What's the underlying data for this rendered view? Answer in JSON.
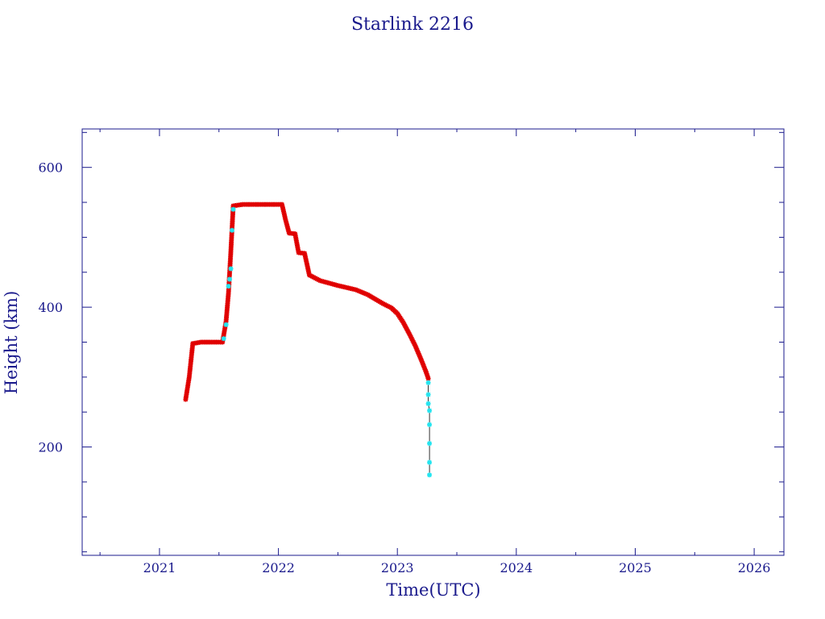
{
  "chart_data": {
    "type": "scatter",
    "title": "Starlink 2216",
    "xlabel": "Time(UTC)",
    "ylabel": "Height (km)",
    "xlim": [
      2020.35,
      2026.25
    ],
    "ylim": [
      45,
      655
    ],
    "x_ticks": [
      {
        "value": 2021,
        "label": "2021"
      },
      {
        "value": 2022,
        "label": "2022"
      },
      {
        "value": 2023,
        "label": "2023"
      },
      {
        "value": 2024,
        "label": "2024"
      },
      {
        "value": 2025,
        "label": "2025"
      },
      {
        "value": 2026,
        "label": "2026"
      }
    ],
    "y_ticks": [
      {
        "value": 200,
        "label": "200"
      },
      {
        "value": 400,
        "label": "400"
      },
      {
        "value": 600,
        "label": "600"
      }
    ],
    "grid": false,
    "colors": {
      "axis": "#1a1a8c",
      "primary_marker": "#e00000",
      "secondary_marker": "#22e5f0",
      "line": "#000000"
    },
    "series": [
      {
        "marker": "red-star",
        "points": [
          [
            2021.22,
            268
          ],
          [
            2021.25,
            300
          ],
          [
            2021.28,
            348
          ],
          [
            2021.35,
            350
          ],
          [
            2021.45,
            350
          ],
          [
            2021.53,
            350
          ],
          [
            2021.56,
            380
          ],
          [
            2021.58,
            420
          ],
          [
            2021.6,
            480
          ],
          [
            2021.62,
            545
          ],
          [
            2021.7,
            547
          ],
          [
            2021.85,
            547
          ],
          [
            2022.03,
            547
          ],
          [
            2022.06,
            525
          ],
          [
            2022.09,
            506
          ],
          [
            2022.14,
            505
          ],
          [
            2022.17,
            478
          ],
          [
            2022.22,
            477
          ],
          [
            2022.26,
            446
          ],
          [
            2022.35,
            438
          ],
          [
            2022.5,
            431
          ],
          [
            2022.65,
            425
          ],
          [
            2022.75,
            418
          ],
          [
            2022.88,
            405
          ],
          [
            2022.95,
            399
          ],
          [
            2023.0,
            391
          ],
          [
            2023.05,
            378
          ],
          [
            2023.1,
            362
          ],
          [
            2023.15,
            345
          ],
          [
            2023.2,
            325
          ],
          [
            2023.24,
            308
          ],
          [
            2023.26,
            298
          ]
        ]
      },
      {
        "marker": "cyan-star",
        "points": [
          [
            2021.54,
            355
          ],
          [
            2021.56,
            375
          ],
          [
            2021.58,
            430
          ],
          [
            2021.59,
            440
          ],
          [
            2021.6,
            455
          ],
          [
            2021.61,
            510
          ],
          [
            2021.62,
            540
          ],
          [
            2023.26,
            292
          ],
          [
            2023.26,
            275
          ],
          [
            2023.26,
            262
          ],
          [
            2023.27,
            252
          ],
          [
            2023.27,
            232
          ],
          [
            2023.27,
            205
          ],
          [
            2023.27,
            178
          ],
          [
            2023.27,
            160
          ]
        ]
      }
    ]
  }
}
